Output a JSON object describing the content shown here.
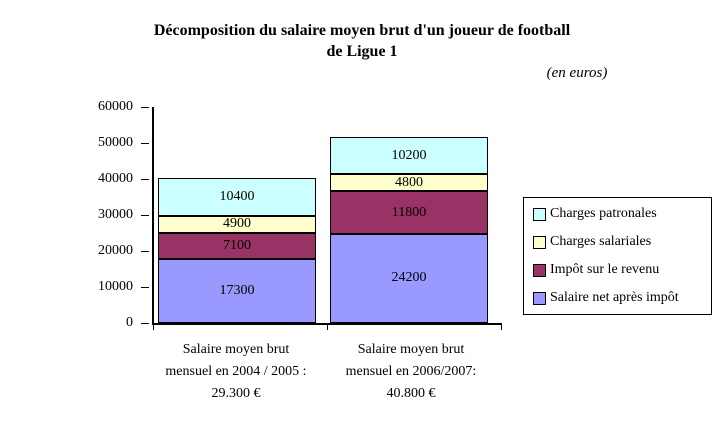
{
  "chart_data": {
    "type": "bar",
    "stacked": true,
    "title_lines": [
      "Décomposition du salaire moyen brut d'un joueur de football",
      "de Ligue 1"
    ],
    "subtitle": "(en euros)",
    "grid": false,
    "ylim": [
      0,
      60000
    ],
    "yticks": [
      0,
      10000,
      20000,
      30000,
      40000,
      50000,
      60000
    ],
    "categories": [
      {
        "lines": [
          "Salaire moyen brut",
          "mensuel en 2004 / 2005 :",
          "29.300 €"
        ]
      },
      {
        "lines": [
          "Salaire moyen brut",
          "mensuel en 2006/2007:",
          "40.800 €"
        ]
      }
    ],
    "series": [
      {
        "name": "Salaire net après impôt",
        "color": "#9999FF",
        "values": [
          17300,
          24200
        ]
      },
      {
        "name": "Impôt sur le revenu",
        "color": "#993366",
        "values": [
          7100,
          11800
        ]
      },
      {
        "name": "Charges salariales",
        "color": "#FFFFCC",
        "values": [
          4900,
          4800
        ]
      },
      {
        "name": "Charges patronales",
        "color": "#CCFFFF",
        "values": [
          10400,
          10200
        ]
      }
    ],
    "legend": {
      "position": "right",
      "entries_top_to_bottom": [
        "Charges patronales",
        "Charges salariales",
        "Impôt sur le revenu",
        "Salaire net après impôt"
      ]
    },
    "colors": {
      "axis": "#000000",
      "text": "#000000",
      "background": "#FFFFFF"
    }
  }
}
